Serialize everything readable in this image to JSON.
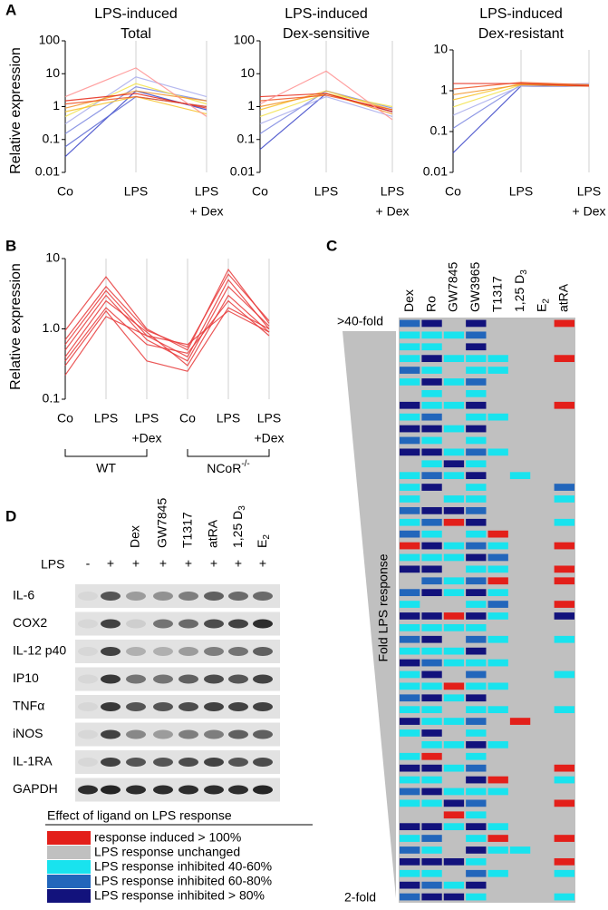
{
  "panel_a": {
    "letter": "A",
    "y_label": "Relative expression",
    "log_scale": true,
    "charts": [
      {
        "title": [
          "LPS-induced",
          "Total"
        ],
        "categories": [
          [
            "Co"
          ],
          [
            "LPS"
          ],
          [
            "LPS",
            "+ Dex"
          ]
        ],
        "ylim": [
          0.01,
          100
        ],
        "yticks": [
          100,
          10,
          1,
          0.1,
          0.01
        ],
        "series": [
          {
            "color": "#3a44c8",
            "values": [
              0.03,
              3,
              0.8
            ]
          },
          {
            "color": "#5866d4",
            "values": [
              0.06,
              2,
              1
            ]
          },
          {
            "color": "#7a86e0",
            "values": [
              0.15,
              4,
              1.5
            ]
          },
          {
            "color": "#a8acec",
            "values": [
              0.3,
              8,
              2
            ]
          },
          {
            "color": "#f2e24a",
            "values": [
              0.5,
              5,
              1.2
            ]
          },
          {
            "color": "#f7c228",
            "values": [
              0.7,
              2,
              0.6
            ]
          },
          {
            "color": "#f29224",
            "values": [
              0.9,
              3,
              1.5
            ]
          },
          {
            "color": "#ef5422",
            "values": [
              1.2,
              2,
              1
            ]
          },
          {
            "color": "#e52414",
            "values": [
              1.5,
              2.5,
              0.9
            ]
          },
          {
            "color": "#ff9090",
            "values": [
              2,
              15,
              0.5
            ]
          }
        ]
      },
      {
        "title": [
          "LPS-induced",
          "Dex-sensitive"
        ],
        "categories": [
          [
            "Co"
          ],
          [
            "LPS"
          ],
          [
            "LPS",
            "+ Dex"
          ]
        ],
        "ylim": [
          0.01,
          100
        ],
        "yticks": [
          100,
          10,
          1,
          0.1,
          0.01
        ],
        "series": [
          {
            "color": "#3a44c8",
            "values": [
              0.05,
              2.5,
              0.7
            ]
          },
          {
            "color": "#7a86e0",
            "values": [
              0.15,
              3,
              0.9
            ]
          },
          {
            "color": "#a8acec",
            "values": [
              0.3,
              2,
              0.5
            ]
          },
          {
            "color": "#f2e24a",
            "values": [
              0.5,
              2.5,
              1
            ]
          },
          {
            "color": "#f7c228",
            "values": [
              0.8,
              3,
              0.8
            ]
          },
          {
            "color": "#f29224",
            "values": [
              1,
              2.5,
              0.6
            ]
          },
          {
            "color": "#ef5422",
            "values": [
              1.5,
              2.2,
              0.8
            ]
          },
          {
            "color": "#e52414",
            "values": [
              2,
              2.5,
              0.7
            ]
          },
          {
            "color": "#ff9090",
            "values": [
              1.2,
              12,
              0.4
            ]
          }
        ]
      },
      {
        "title": [
          "LPS-induced",
          "Dex-resistant"
        ],
        "categories": [
          [
            "Co"
          ],
          [
            "LPS"
          ],
          [
            "LPS",
            "+ Dex"
          ]
        ],
        "ylim": [
          0.01,
          10
        ],
        "yticks": [
          10,
          1,
          0.1,
          0.01
        ],
        "series": [
          {
            "color": "#3a44c8",
            "values": [
              0.03,
              1.3,
              1.3
            ]
          },
          {
            "color": "#7a86e0",
            "values": [
              0.12,
              1.4,
              1.4
            ]
          },
          {
            "color": "#a8acec",
            "values": [
              0.25,
              1.3,
              1.5
            ]
          },
          {
            "color": "#f2e24a",
            "values": [
              0.4,
              1.4,
              1.3
            ]
          },
          {
            "color": "#f7c228",
            "values": [
              0.6,
              1.5,
              1.4
            ]
          },
          {
            "color": "#f29224",
            "values": [
              0.8,
              1.4,
              1.3
            ]
          },
          {
            "color": "#ef5422",
            "values": [
              1.1,
              1.6,
              1.4
            ]
          },
          {
            "color": "#e52414",
            "values": [
              1.5,
              1.5,
              1.3
            ]
          }
        ]
      }
    ]
  },
  "panel_b": {
    "letter": "B",
    "y_label": "Relative expression",
    "log_scale": true,
    "categories": [
      [
        "Co"
      ],
      [
        "LPS"
      ],
      [
        "LPS",
        "+Dex"
      ],
      [
        "Co"
      ],
      [
        "LPS"
      ],
      [
        "LPS",
        "+Dex"
      ]
    ],
    "ylim": [
      0.1,
      10
    ],
    "yticks": [
      10,
      {
        "value": 1,
        "label": "1.0"
      },
      0.1
    ],
    "groups": [
      "WT",
      {
        "text": "NCoR",
        "sup": "-/-"
      }
    ],
    "series": [
      {
        "color": "#e83a3a",
        "values": [
          0.95,
          5.5,
          1,
          0.5,
          7,
          1.2
        ]
      },
      {
        "color": "#e83a3a",
        "values": [
          0.6,
          3.5,
          0.8,
          0.4,
          5,
          1
        ]
      },
      {
        "color": "#e83a3a",
        "values": [
          0.5,
          3,
          0.7,
          0.35,
          4,
          1.1
        ]
      },
      {
        "color": "#e83a3a",
        "values": [
          0.4,
          2.5,
          0.9,
          0.3,
          3,
          0.9
        ]
      },
      {
        "color": "#e83a3a",
        "values": [
          0.35,
          2,
          0.6,
          0.45,
          2.5,
          0.8
        ]
      },
      {
        "color": "#e83a3a",
        "values": [
          0.3,
          1.8,
          0.35,
          0.25,
          2,
          1
        ]
      },
      {
        "color": "#e83a3a",
        "values": [
          0.22,
          1.5,
          0.8,
          0.6,
          1.8,
          0.9
        ]
      },
      {
        "color": "#e83a3a",
        "values": [
          0.7,
          4,
          0.95,
          0.55,
          6,
          1.3
        ]
      }
    ]
  },
  "panel_c": {
    "letter": "C",
    "columns": [
      "Dex",
      "Ro",
      "GW7845",
      "GW3965",
      "T1317",
      {
        "text": "1,25 D",
        "sub": "3"
      },
      {
        "text": "E",
        "sub": "2"
      },
      "atRA"
    ],
    "top_label": ">40-fold",
    "bottom_label": "2-fold",
    "axis_label": "Fold LPS response",
    "rows": [
      [
        3,
        4,
        1,
        4,
        1,
        1,
        1,
        0
      ],
      [
        2,
        2,
        2,
        3,
        1,
        1,
        1,
        1
      ],
      [
        2,
        2,
        1,
        4,
        1,
        1,
        1,
        1
      ],
      [
        2,
        4,
        2,
        2,
        2,
        1,
        1,
        0
      ],
      [
        3,
        2,
        1,
        2,
        2,
        1,
        1,
        1
      ],
      [
        2,
        4,
        2,
        3,
        1,
        1,
        1,
        1
      ],
      [
        1,
        2,
        1,
        2,
        1,
        1,
        1,
        1
      ],
      [
        4,
        2,
        2,
        4,
        1,
        1,
        1,
        0
      ],
      [
        2,
        3,
        1,
        2,
        2,
        1,
        1,
        1
      ],
      [
        4,
        4,
        2,
        4,
        1,
        1,
        1,
        1
      ],
      [
        3,
        2,
        1,
        2,
        1,
        1,
        1,
        1
      ],
      [
        4,
        4,
        2,
        3,
        2,
        1,
        1,
        1
      ],
      [
        1,
        2,
        4,
        2,
        1,
        1,
        1,
        1
      ],
      [
        2,
        3,
        2,
        4,
        1,
        2,
        1,
        1
      ],
      [
        2,
        4,
        1,
        2,
        1,
        1,
        1,
        3
      ],
      [
        2,
        1,
        2,
        2,
        1,
        1,
        1,
        2
      ],
      [
        3,
        4,
        4,
        3,
        1,
        1,
        1,
        1
      ],
      [
        2,
        3,
        0,
        4,
        1,
        1,
        1,
        2
      ],
      [
        3,
        2,
        1,
        2,
        0,
        1,
        1,
        1
      ],
      [
        0,
        4,
        2,
        3,
        2,
        1,
        1,
        0
      ],
      [
        2,
        2,
        2,
        4,
        3,
        1,
        1,
        1
      ],
      [
        4,
        4,
        1,
        2,
        2,
        1,
        1,
        0
      ],
      [
        1,
        3,
        2,
        3,
        0,
        1,
        1,
        0
      ],
      [
        3,
        4,
        2,
        4,
        2,
        1,
        1,
        1
      ],
      [
        2,
        1,
        1,
        2,
        3,
        1,
        1,
        0
      ],
      [
        4,
        4,
        0,
        4,
        2,
        1,
        1,
        4
      ],
      [
        2,
        2,
        2,
        2,
        1,
        1,
        1,
        1
      ],
      [
        3,
        4,
        1,
        3,
        2,
        1,
        1,
        2
      ],
      [
        2,
        2,
        2,
        4,
        1,
        1,
        1,
        1
      ],
      [
        4,
        3,
        2,
        2,
        2,
        1,
        1,
        1
      ],
      [
        2,
        4,
        1,
        3,
        1,
        1,
        1,
        2
      ],
      [
        2,
        2,
        0,
        2,
        2,
        1,
        1,
        1
      ],
      [
        3,
        4,
        2,
        4,
        1,
        1,
        1,
        1
      ],
      [
        2,
        2,
        1,
        2,
        2,
        1,
        1,
        2
      ],
      [
        4,
        2,
        2,
        3,
        1,
        0,
        1,
        1
      ],
      [
        2,
        4,
        1,
        2,
        1,
        1,
        1,
        1
      ],
      [
        1,
        2,
        2,
        4,
        2,
        1,
        1,
        1
      ],
      [
        2,
        0,
        1,
        2,
        1,
        1,
        1,
        1
      ],
      [
        4,
        4,
        2,
        3,
        1,
        1,
        1,
        0
      ],
      [
        2,
        2,
        1,
        4,
        0,
        1,
        1,
        2
      ],
      [
        3,
        4,
        2,
        2,
        2,
        1,
        1,
        1
      ],
      [
        2,
        2,
        4,
        3,
        1,
        1,
        1,
        0
      ],
      [
        1,
        1,
        0,
        2,
        1,
        1,
        1,
        1
      ],
      [
        4,
        4,
        2,
        4,
        2,
        1,
        1,
        1
      ],
      [
        2,
        3,
        1,
        2,
        0,
        1,
        1,
        0
      ],
      [
        3,
        2,
        1,
        4,
        2,
        2,
        1,
        1
      ],
      [
        4,
        4,
        4,
        2,
        1,
        1,
        1,
        0
      ],
      [
        2,
        2,
        1,
        3,
        2,
        1,
        1,
        2
      ],
      [
        4,
        3,
        2,
        4,
        1,
        1,
        1,
        1
      ],
      [
        3,
        4,
        4,
        2,
        1,
        1,
        1,
        2
      ]
    ]
  },
  "panel_d": {
    "letter": "D",
    "treatments": [
      "Dex",
      "GW7845",
      "T1317",
      "atRA",
      {
        "text": "1,25 D",
        "sub": "3"
      },
      {
        "text": "E",
        "sub": "2"
      }
    ],
    "lps_label": "LPS",
    "lps_lanes": [
      "-",
      "+",
      "+",
      "+",
      "+",
      "+",
      "+",
      "+"
    ],
    "blots": [
      {
        "name": "IL-6",
        "bands": [
          0.05,
          0.7,
          0.35,
          0.4,
          0.5,
          0.65,
          0.6,
          0.6
        ]
      },
      {
        "name": "COX2",
        "bands": [
          0.05,
          0.8,
          0.1,
          0.55,
          0.6,
          0.75,
          0.8,
          0.9
        ]
      },
      {
        "name": "IL-12 p40",
        "bands": [
          0.05,
          0.8,
          0.25,
          0.25,
          0.35,
          0.5,
          0.55,
          0.65
        ]
      },
      {
        "name": "IP10",
        "bands": [
          0.05,
          0.85,
          0.55,
          0.55,
          0.65,
          0.75,
          0.7,
          0.8
        ]
      },
      {
        "name": "TNFα",
        "bands": [
          0.05,
          0.85,
          0.7,
          0.7,
          0.75,
          0.8,
          0.8,
          0.8
        ]
      },
      {
        "name": "iNOS",
        "bands": [
          0.05,
          0.8,
          0.45,
          0.35,
          0.5,
          0.5,
          0.65,
          0.65
        ]
      },
      {
        "name": "IL-1RA",
        "bands": [
          0.05,
          0.8,
          0.7,
          0.7,
          0.75,
          0.8,
          0.7,
          0.75
        ]
      },
      {
        "name": "GAPDH",
        "bands": [
          0.9,
          0.95,
          0.9,
          0.9,
          0.9,
          0.9,
          0.9,
          0.95
        ]
      }
    ]
  },
  "legend": {
    "title": "Effect of ligand on LPS response",
    "entries": [
      {
        "label": "response induced > 100%",
        "color": "#e31f1a"
      },
      {
        "label": "LPS response unchanged",
        "color": "#c0c0c0"
      },
      {
        "label": "LPS response inhibited 40-60%",
        "color": "#19e3ee"
      },
      {
        "label": "LPS response inhibited 60-80%",
        "color": "#2266bb"
      },
      {
        "label": "LPS response inhibited > 80%",
        "color": "#12127c"
      }
    ]
  }
}
